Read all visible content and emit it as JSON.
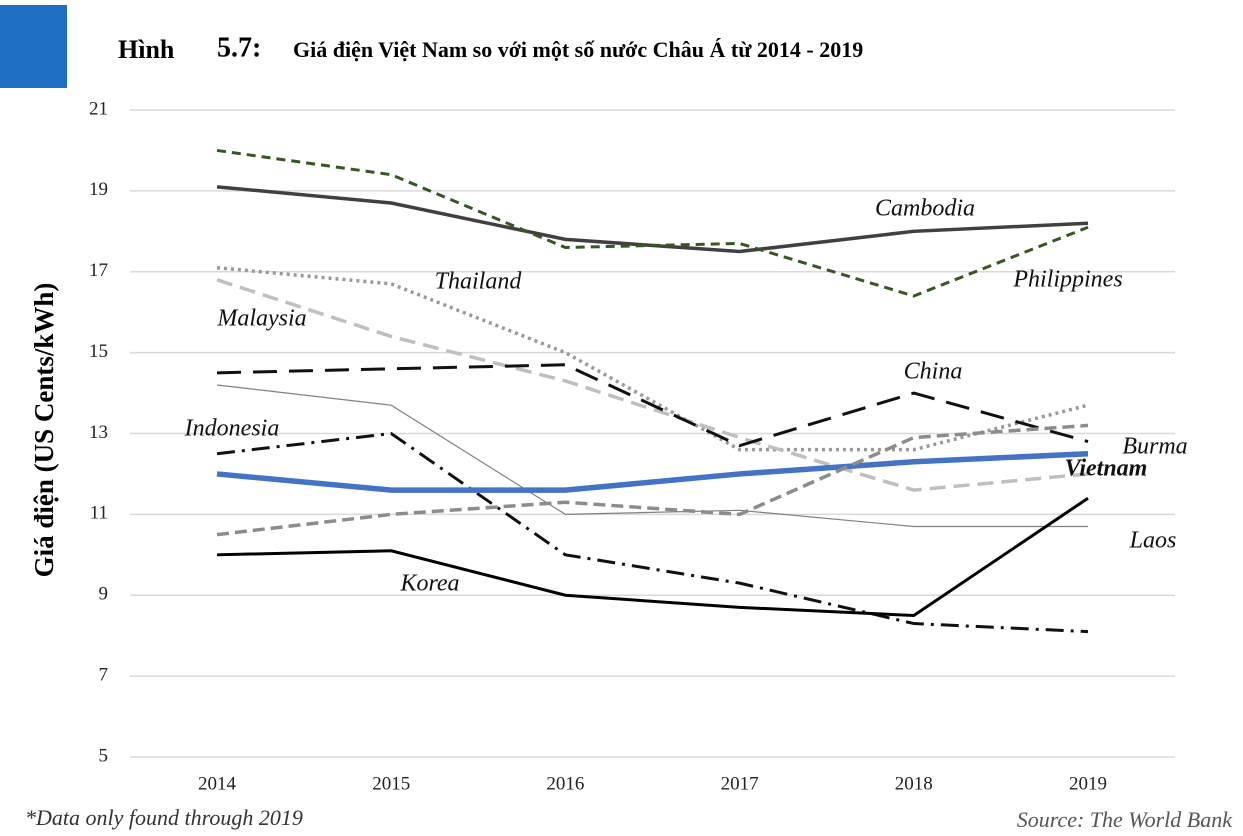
{
  "chart_data": {
    "type": "line",
    "figure_label": "Hình",
    "figure_number": "5.7:",
    "title": "Giá điện Việt Nam so với một số nước Châu Á từ 2014 - 2019",
    "y_label": "Giá điện (US Cents/kWh)",
    "footnote": "*Data only found through 2019",
    "source": "Source: The World Bank",
    "categories": [
      "2014",
      "2015",
      "2016",
      "2017",
      "2018",
      "2019"
    ],
    "ylim": [
      5,
      21
    ],
    "yticks": [
      5,
      7,
      9,
      11,
      13,
      15,
      17,
      19,
      21
    ],
    "grid": true,
    "series": [
      {
        "name": "Cambodia",
        "color": "#404040",
        "values": [
          19.1,
          18.7,
          17.8,
          17.5,
          18.0,
          18.2
        ]
      },
      {
        "name": "Philippines",
        "color": "#375623",
        "values": [
          20.0,
          19.4,
          17.6,
          17.7,
          16.4,
          18.1
        ]
      },
      {
        "name": "Thailand",
        "color": "#999999",
        "values": [
          17.1,
          16.7,
          15.0,
          12.6,
          12.6,
          13.7
        ]
      },
      {
        "name": "Malaysia",
        "color": "#bfbfbf",
        "values": [
          16.8,
          15.4,
          14.3,
          12.9,
          11.6,
          12.0
        ]
      },
      {
        "name": "China",
        "color": "#111111",
        "values": [
          14.5,
          14.6,
          14.7,
          12.7,
          14.0,
          12.8
        ]
      },
      {
        "name": "Indonesia",
        "color": "#808080",
        "values": [
          14.2,
          13.7,
          11.0,
          11.1,
          10.7,
          10.7
        ]
      },
      {
        "name": "Burma",
        "color": "#111111",
        "values": [
          12.5,
          13.0,
          10.0,
          9.3,
          8.3,
          8.1
        ]
      },
      {
        "name": "Vietnam",
        "color": "#4472c4",
        "values": [
          12.0,
          11.6,
          11.6,
          12.0,
          12.3,
          12.5
        ]
      },
      {
        "name": "Laos",
        "color": "#8c8c8c",
        "values": [
          10.5,
          11.0,
          11.3,
          11.0,
          12.9,
          13.2
        ]
      },
      {
        "name": "Korea",
        "color": "#000000",
        "values": [
          10.0,
          10.1,
          9.0,
          8.7,
          8.5,
          11.4
        ]
      }
    ]
  }
}
